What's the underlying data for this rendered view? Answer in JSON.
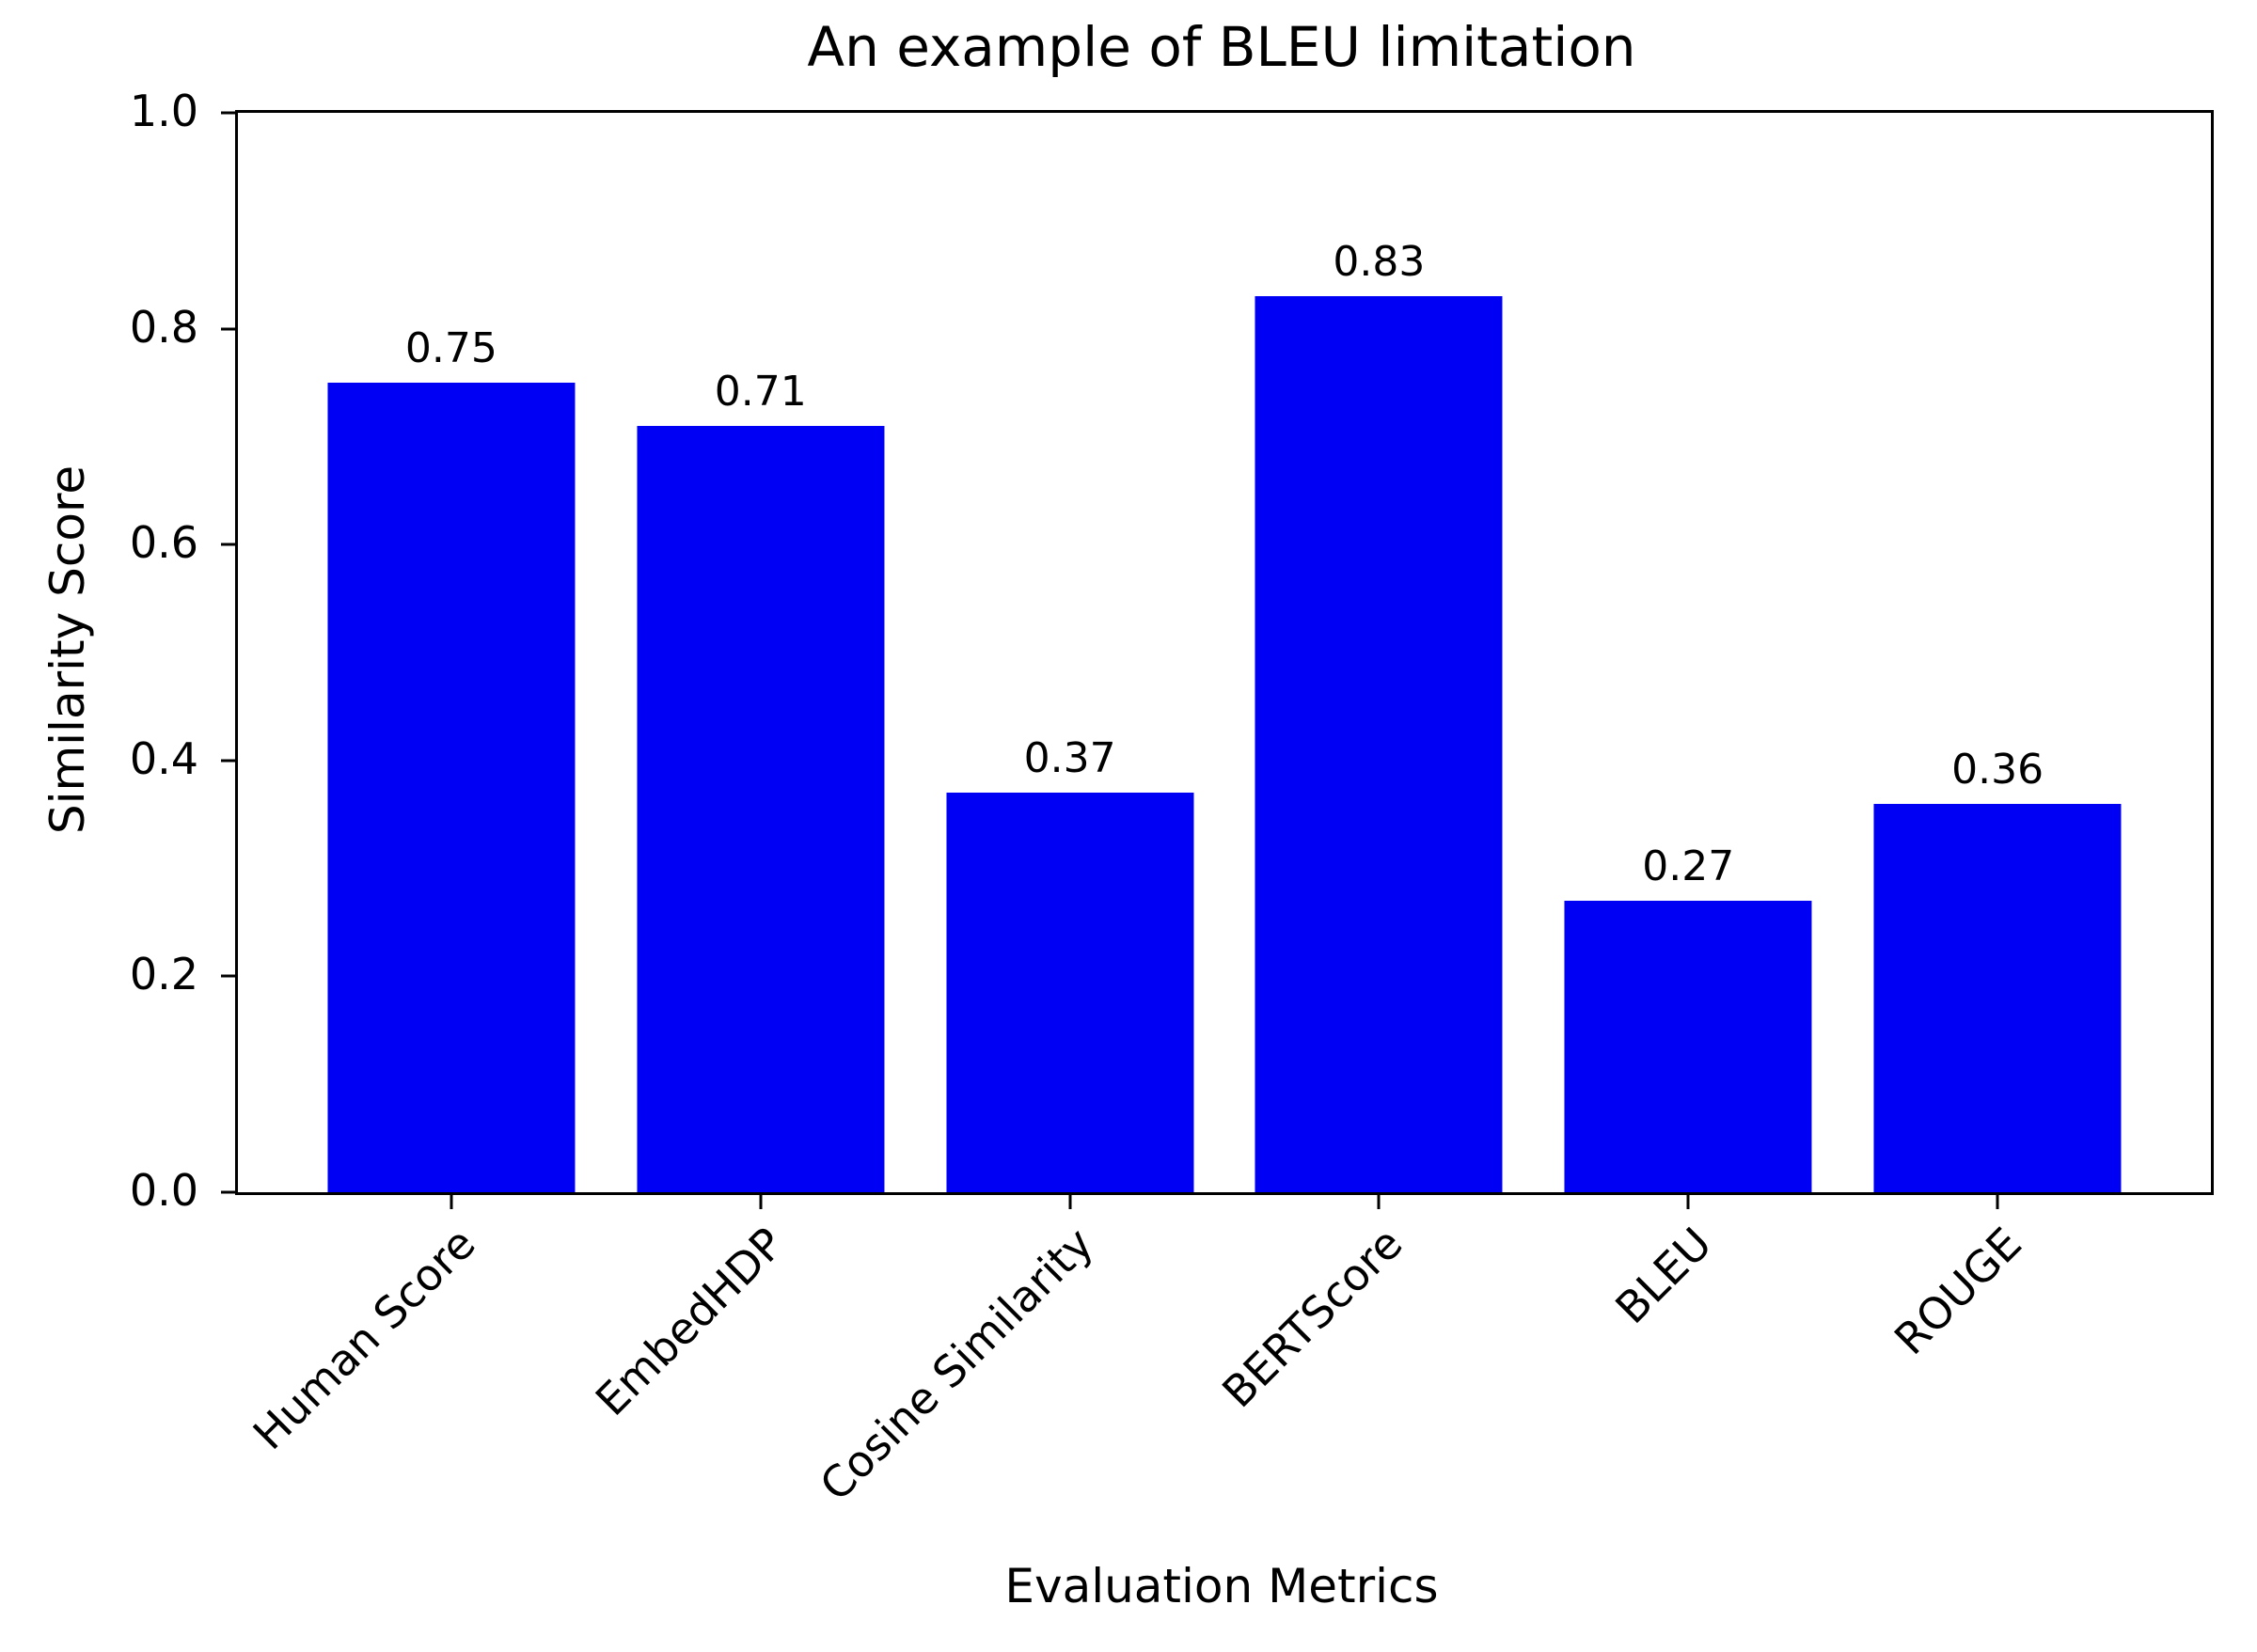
{
  "chart_data": {
    "type": "bar",
    "title": "An example of BLEU limitation",
    "xlabel": "Evaluation Metrics",
    "ylabel": "Similarity Score",
    "categories": [
      "Human Score",
      "EmbedHDP",
      "Cosine Similarity",
      "BERTScore",
      "BLEU",
      "ROUGE"
    ],
    "values": [
      0.75,
      0.71,
      0.37,
      0.83,
      0.27,
      0.36
    ],
    "value_labels": [
      "0.75",
      "0.71",
      "0.37",
      "0.83",
      "0.27",
      "0.36"
    ],
    "ylim": [
      0.0,
      1.0
    ],
    "yticks": [
      "0.0",
      "0.2",
      "0.4",
      "0.6",
      "0.8",
      "1.0"
    ],
    "bar_color": "#0000f5",
    "axis_color": "#000000",
    "text_color": "#000000",
    "background_color": "#ffffff",
    "grid": false,
    "legend": null,
    "xtick_rotation_deg": 45
  }
}
